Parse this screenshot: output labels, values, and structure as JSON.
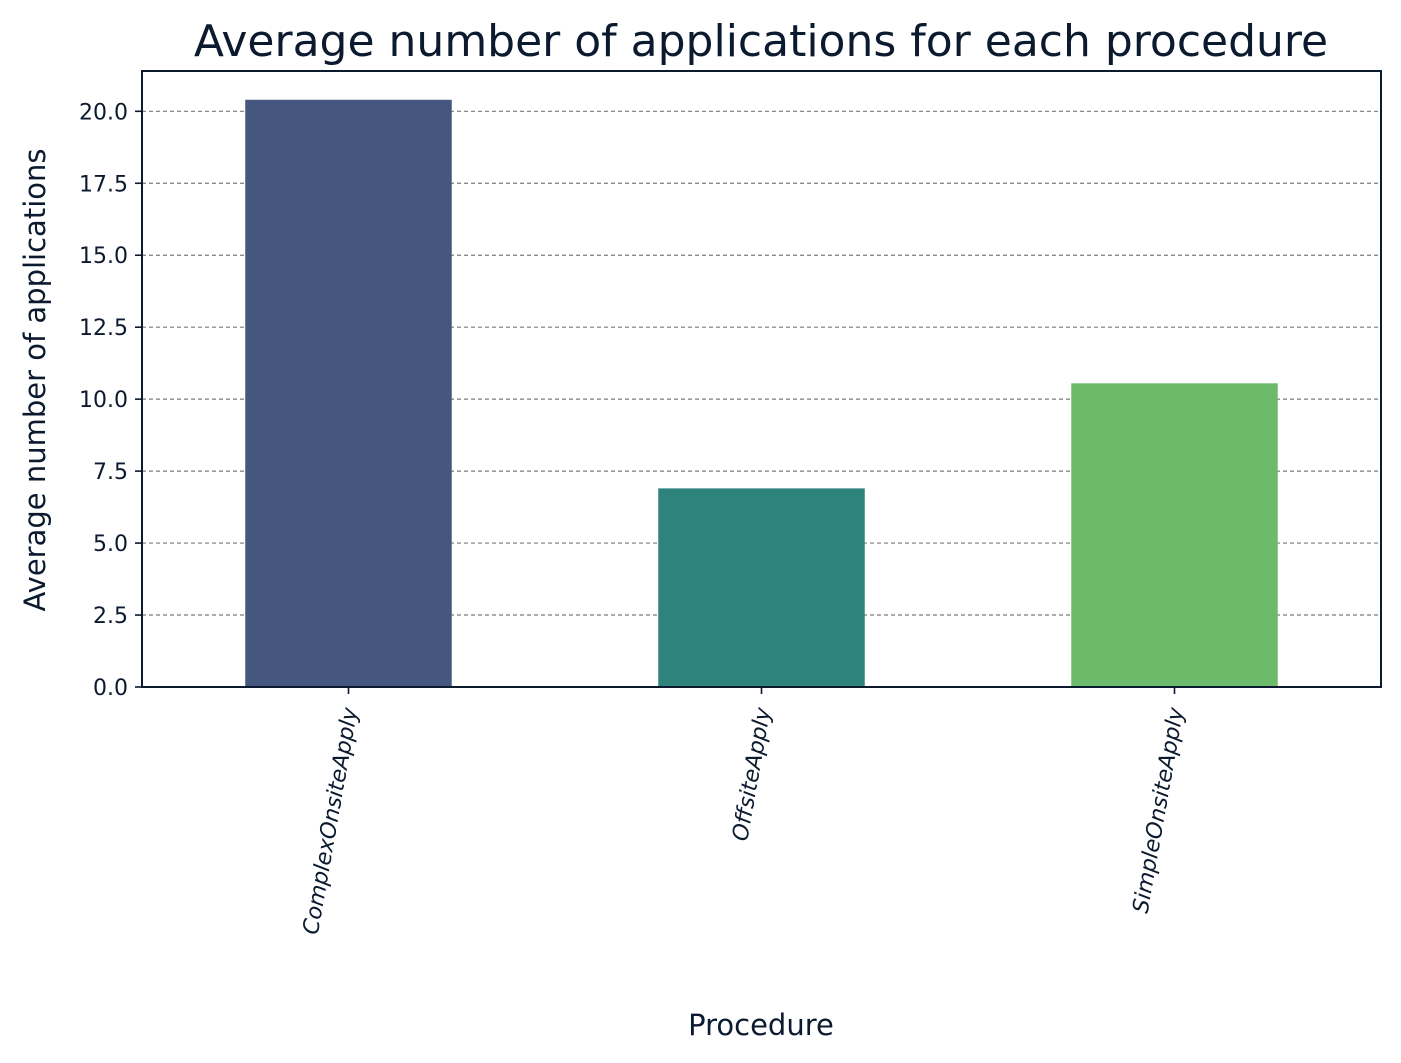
{
  "chart_data": {
    "type": "bar",
    "title": "Average number of applications for each procedure",
    "xlabel": "Procedure",
    "ylabel": "Average number of applications",
    "categories": [
      "ComplexOnsiteApply",
      "OffsiteApply",
      "SimpleOnsiteApply"
    ],
    "values": [
      20.4,
      6.9,
      10.55
    ],
    "colors": [
      "#46577f",
      "#2e837c",
      "#6bbb6b"
    ],
    "ylim": [
      0,
      21.4
    ],
    "yticks": [
      0.0,
      2.5,
      5.0,
      7.5,
      10.0,
      12.5,
      15.0,
      17.5,
      20.0
    ],
    "ytick_labels": [
      "0.0",
      "2.5",
      "5.0",
      "7.5",
      "10.0",
      "12.5",
      "15.0",
      "17.5",
      "20.0"
    ],
    "grid": true,
    "grid_axis": "y"
  }
}
